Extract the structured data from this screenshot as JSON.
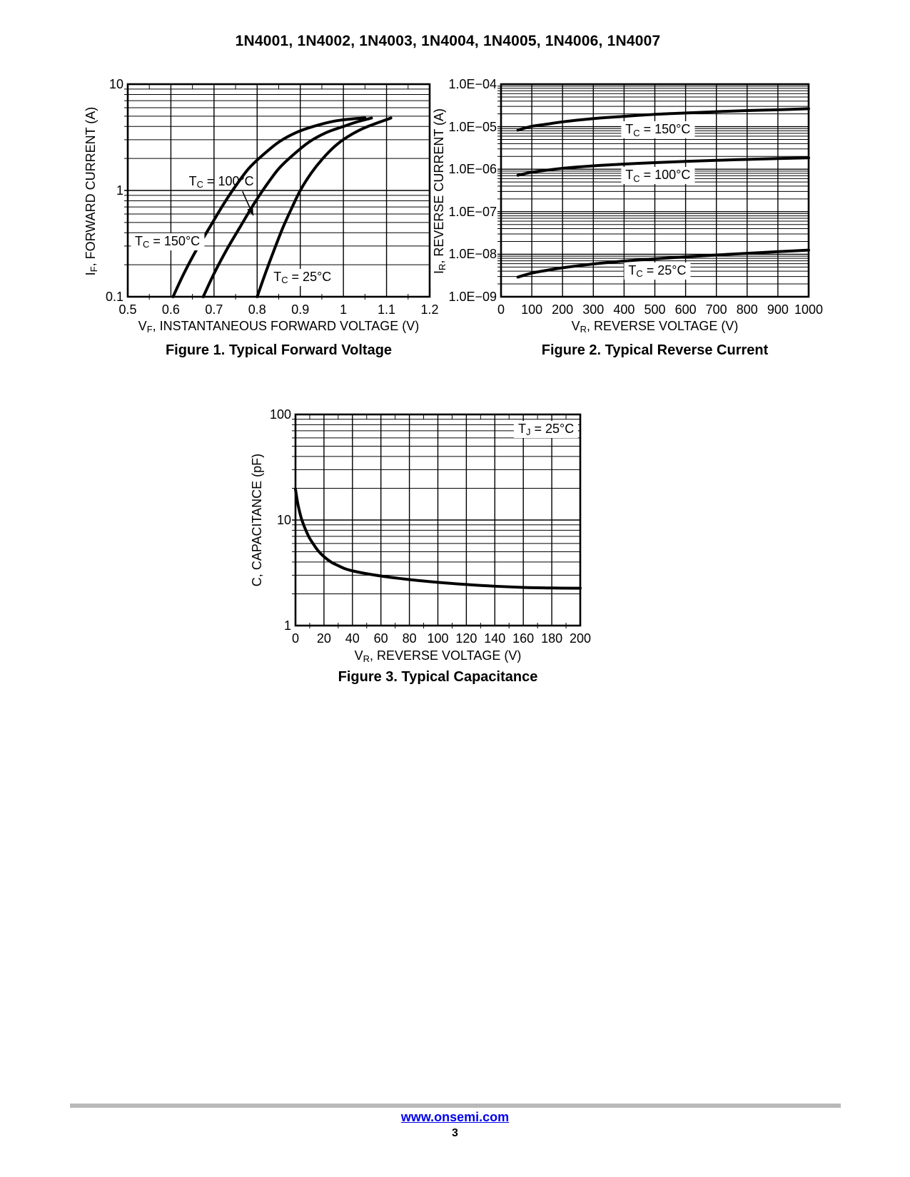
{
  "page": {
    "title": "1N4001, 1N4002, 1N4003, 1N4004, 1N4005, 1N4006, 1N4007",
    "footer": {
      "link": "www.onsemi.com",
      "page_number": "3"
    }
  },
  "colors": {
    "text": "#000000",
    "link_blue": "#0000EE",
    "footer_rule_gray": "#b9b9b9",
    "curve_black": "#000000",
    "grid_black": "#000000",
    "background": "#ffffff"
  },
  "chart_data": [
    {
      "id": "fig1",
      "type": "line",
      "caption": "Figure 1. Typical Forward Voltage",
      "x_axis": {
        "scale": "linear",
        "label_pre": "V",
        "label_sub": "F",
        "label_post": ", INSTANTANEOUS FORWARD VOLTAGE (V)",
        "min": 0.5,
        "max": 1.2,
        "tick_values": [
          0.5,
          0.6,
          0.7,
          0.8,
          0.9,
          1.0,
          1.1,
          1.2
        ],
        "tick_labels": [
          "0.5",
          "0.6",
          "0.7",
          "0.8",
          "0.9",
          "1",
          "1.1",
          "1.2"
        ],
        "minor_step": 0.05
      },
      "y_axis": {
        "scale": "log",
        "label_pre": "I",
        "label_sub": "F",
        "label_post": ", FORWARD CURRENT (A)",
        "min": 0.1,
        "max": 10,
        "ticks": [
          {
            "v": 10,
            "label": "10"
          },
          {
            "v": 1,
            "label": "1"
          },
          {
            "v": 0.1,
            "label": "0.1"
          }
        ]
      },
      "series": [
        {
          "name": "TC = 150°C",
          "points": [
            [
              0.605,
              0.1
            ],
            [
              0.63,
              0.165
            ],
            [
              0.66,
              0.28
            ],
            [
              0.69,
              0.45
            ],
            [
              0.72,
              0.72
            ],
            [
              0.75,
              1.1
            ],
            [
              0.78,
              1.6
            ],
            [
              0.81,
              2.1
            ],
            [
              0.85,
              2.85
            ],
            [
              0.89,
              3.5
            ],
            [
              0.93,
              4.0
            ],
            [
              0.98,
              4.5
            ],
            [
              1.03,
              4.75
            ],
            [
              1.05,
              4.8
            ]
          ]
        },
        {
          "name": "TC = 100°C",
          "points": [
            [
              0.675,
              0.1
            ],
            [
              0.7,
              0.165
            ],
            [
              0.73,
              0.28
            ],
            [
              0.76,
              0.45
            ],
            [
              0.79,
              0.72
            ],
            [
              0.82,
              1.1
            ],
            [
              0.85,
              1.6
            ],
            [
              0.88,
              2.1
            ],
            [
              0.92,
              2.85
            ],
            [
              0.96,
              3.5
            ],
            [
              1.0,
              4.0
            ],
            [
              1.03,
              4.4
            ],
            [
              1.065,
              4.8
            ]
          ]
        },
        {
          "name": "TC = 25°C",
          "points": [
            [
              0.8,
              0.1
            ],
            [
              0.82,
              0.17
            ],
            [
              0.84,
              0.28
            ],
            [
              0.86,
              0.45
            ],
            [
              0.88,
              0.68
            ],
            [
              0.9,
              1.0
            ],
            [
              0.925,
              1.45
            ],
            [
              0.95,
              1.95
            ],
            [
              0.98,
              2.6
            ],
            [
              1.01,
              3.2
            ],
            [
              1.05,
              3.9
            ],
            [
              1.11,
              4.8
            ]
          ]
        }
      ],
      "annotations": [
        {
          "pre": "T",
          "sub": "C",
          "post": " = 100°C",
          "x": 0.717,
          "y": 1.21,
          "box": false
        },
        {
          "pre": "T",
          "sub": "C",
          "post": " = 150°C",
          "x": 0.592,
          "y": 0.33,
          "box": true
        },
        {
          "pre": "T",
          "sub": "C",
          "post": " = 25°C",
          "x": 0.905,
          "y": 0.152,
          "box": true
        }
      ],
      "arrow": {
        "from": [
          0.766,
          0.98
        ],
        "to": [
          0.791,
          0.583
        ]
      }
    },
    {
      "id": "fig2",
      "type": "line",
      "caption": "Figure 2. Typical Reverse Current",
      "x_axis": {
        "scale": "linear",
        "label_pre": "V",
        "label_sub": "R",
        "label_post": ", REVERSE VOLTAGE (V)",
        "min": 0,
        "max": 1000,
        "tick_values": [
          0,
          100,
          200,
          300,
          400,
          500,
          600,
          700,
          800,
          900,
          1000
        ],
        "tick_labels": [
          "0",
          "100",
          "200",
          "300",
          "400",
          "500",
          "600",
          "700",
          "800",
          "900",
          "1000"
        ],
        "minor_step": null
      },
      "y_axis": {
        "scale": "log",
        "label_pre": "I",
        "label_sub": "R",
        "label_post": ", REVERSE CURRENT (A)",
        "min": 1e-09,
        "max": 0.0001,
        "ticks": [
          {
            "v": 0.0001,
            "label": "1.0E−04"
          },
          {
            "v": 1e-05,
            "label": "1.0E−05"
          },
          {
            "v": 1e-06,
            "label": "1.0E−06"
          },
          {
            "v": 1e-07,
            "label": "1.0E−07"
          },
          {
            "v": 1e-08,
            "label": "1.0E−08"
          },
          {
            "v": 1e-09,
            "label": "1.0E−09"
          }
        ]
      },
      "series": [
        {
          "name": "TC = 150°C",
          "points": [
            [
              55,
              8.3e-06
            ],
            [
              100,
              1.02e-05
            ],
            [
              150,
              1.15e-05
            ],
            [
              200,
              1.3e-05
            ],
            [
              300,
              1.55e-05
            ],
            [
              400,
              1.75e-05
            ],
            [
              500,
              1.95e-05
            ],
            [
              600,
              2.1e-05
            ],
            [
              700,
              2.25e-05
            ],
            [
              800,
              2.4e-05
            ],
            [
              900,
              2.5e-05
            ],
            [
              1000,
              2.65e-05
            ]
          ]
        },
        {
          "name": "TC = 100°C",
          "points": [
            [
              55,
              7.2e-07
            ],
            [
              100,
              8.5e-07
            ],
            [
              150,
              9.5e-07
            ],
            [
              200,
              1.05e-06
            ],
            [
              300,
              1.2e-06
            ],
            [
              400,
              1.32e-06
            ],
            [
              500,
              1.43e-06
            ],
            [
              600,
              1.53e-06
            ],
            [
              700,
              1.62e-06
            ],
            [
              800,
              1.7e-06
            ],
            [
              900,
              1.78e-06
            ],
            [
              1000,
              1.85e-06
            ]
          ]
        },
        {
          "name": "TC = 25°C",
          "points": [
            [
              55,
              2.9e-09
            ],
            [
              100,
              3.6e-09
            ],
            [
              150,
              4.2e-09
            ],
            [
              200,
              4.8e-09
            ],
            [
              300,
              5.9e-09
            ],
            [
              400,
              6.9e-09
            ],
            [
              500,
              7.8e-09
            ],
            [
              600,
              8.7e-09
            ],
            [
              700,
              9.6e-09
            ],
            [
              800,
              1.05e-08
            ],
            [
              900,
              1.15e-08
            ],
            [
              1000,
              1.25e-08
            ]
          ]
        }
      ],
      "annotations": [
        {
          "pre": "T",
          "sub": "C",
          "post": " = 150°C",
          "x": 510,
          "y": 8.3e-06,
          "box": true
        },
        {
          "pre": "T",
          "sub": "C",
          "post": " = 100°C",
          "x": 510,
          "y": 7e-07,
          "box": true
        },
        {
          "pre": "T",
          "sub": "C",
          "post": " = 25°C",
          "x": 508,
          "y": 4e-09,
          "box": true
        }
      ],
      "arrow": null
    },
    {
      "id": "fig3",
      "type": "line",
      "caption": "Figure 3. Typical Capacitance",
      "x_axis": {
        "scale": "linear",
        "label_pre": "V",
        "label_sub": "R",
        "label_post": ", REVERSE VOLTAGE (V)",
        "min": 0,
        "max": 200,
        "tick_values": [
          0,
          20,
          40,
          60,
          80,
          100,
          120,
          140,
          160,
          180,
          200
        ],
        "tick_labels": [
          "0",
          "20",
          "40",
          "60",
          "80",
          "100",
          "120",
          "140",
          "160",
          "180",
          "200"
        ],
        "minor_step": 10
      },
      "y_axis": {
        "scale": "log",
        "label_pre": "C",
        "label_sub": null,
        "label_post": ", CAPACITANCE (pF)",
        "min": 1,
        "max": 100,
        "ticks": [
          {
            "v": 100,
            "label": "100"
          },
          {
            "v": 10,
            "label": "10"
          },
          {
            "v": 1,
            "label": "1"
          }
        ]
      },
      "series": [
        {
          "name": "TJ = 25°C",
          "points": [
            [
              0,
              19.5
            ],
            [
              1,
              16
            ],
            [
              2,
              13.5
            ],
            [
              4,
              10.5
            ],
            [
              6,
              8.8
            ],
            [
              8,
              7.6
            ],
            [
              10,
              6.7
            ],
            [
              13,
              5.8
            ],
            [
              16,
              5.1
            ],
            [
              20,
              4.5
            ],
            [
              25,
              4.0
            ],
            [
              30,
              3.7
            ],
            [
              35,
              3.45
            ],
            [
              40,
              3.3
            ],
            [
              50,
              3.1
            ],
            [
              60,
              2.95
            ],
            [
              70,
              2.83
            ],
            [
              80,
              2.73
            ],
            [
              100,
              2.57
            ],
            [
              120,
              2.45
            ],
            [
              140,
              2.36
            ],
            [
              160,
              2.3
            ],
            [
              180,
              2.27
            ],
            [
              200,
              2.26
            ]
          ]
        }
      ],
      "annotations": [
        {
          "pre": "T",
          "sub": "J",
          "post": " = 25°C",
          "x": 176,
          "y": 72,
          "box": true
        }
      ],
      "arrow": null
    }
  ]
}
